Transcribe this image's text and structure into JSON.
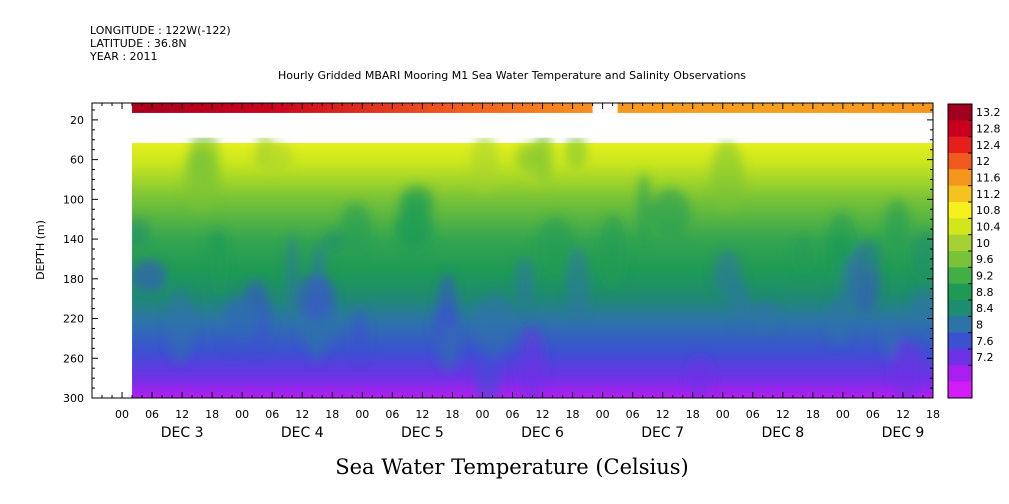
{
  "header": {
    "longitude": "LONGITUDE : 122W(-122)",
    "latitude": "LATITUDE : 36.8N",
    "year": "YEAR : 2011"
  },
  "chart_data": {
    "type": "heatmap",
    "title": "Hourly Gridded MBARI Mooring M1 Sea Water Temperature and Salinity Observations",
    "subtitle": "Sea Water Temperature (Celsius)",
    "xlabel": "",
    "ylabel": "DEPTH (m)",
    "x_hour_ticks": [
      "00",
      "06",
      "12",
      "18",
      "00",
      "06",
      "12",
      "18",
      "00",
      "06",
      "12",
      "18",
      "00",
      "06",
      "12",
      "18",
      "00",
      "06",
      "12",
      "18",
      "00",
      "06",
      "12",
      "18",
      "00",
      "06",
      "12",
      "18"
    ],
    "x_day_labels": [
      "DEC  3",
      "DEC  4",
      "DEC  5",
      "DEC  6",
      "DEC  7",
      "DEC  8",
      "DEC  9"
    ],
    "x_range_hours": [
      -6,
      162
    ],
    "y_ticks": [
      "20",
      "60",
      "100",
      "140",
      "180",
      "220",
      "260",
      "300"
    ],
    "y_tick_values": [
      20,
      60,
      100,
      140,
      180,
      220,
      260,
      300
    ],
    "y_range": [
      300,
      3
    ],
    "data_start_hour": 2,
    "colorbar_labels": [
      "13.2",
      "12.8",
      "12.4",
      "12",
      "11.6",
      "11.2",
      "10.8",
      "10.4",
      "10",
      "9.6",
      "9.2",
      "8.8",
      "8.4",
      "8",
      "7.6",
      "7.2"
    ],
    "colorbar_values": [
      13.2,
      12.8,
      12.4,
      12,
      11.6,
      11.2,
      10.8,
      10.4,
      10,
      9.6,
      9.2,
      8.8,
      8.4,
      8,
      7.6,
      7.2
    ],
    "colorbar_colors": [
      "#a0001e",
      "#c8001e",
      "#e61e1e",
      "#f05a1e",
      "#f5961e",
      "#f5c31e",
      "#f5f01e",
      "#d2e61e",
      "#a5d232",
      "#78c337",
      "#41af46",
      "#1e9a55",
      "#1e8c6e",
      "#2d73aa",
      "#3c50d2",
      "#6e32e6",
      "#aa1ef0",
      "#d21ef5"
    ],
    "gap_hours": [
      [
        -6,
        2
      ]
    ],
    "surface_gap_hours": [
      [
        94,
        99
      ]
    ],
    "surface_depth_m": 10,
    "unsampled_depth_range_m": [
      13,
      38
    ],
    "temperature_profile_depth_m": [
      38,
      60,
      80,
      100,
      120,
      140,
      160,
      180,
      200,
      220,
      240,
      260,
      280,
      300
    ],
    "temperature_profile_c": [
      10.6,
      10.3,
      9.9,
      9.6,
      9.3,
      9.0,
      8.8,
      8.6,
      8.3,
      8.1,
      7.9,
      7.7,
      7.5,
      7.3
    ],
    "surface_temperature_c": [
      {
        "hour": 2,
        "value": 13.2
      },
      {
        "hour": 30,
        "value": 12.6
      },
      {
        "hour": 70,
        "value": 11.9
      },
      {
        "hour": 93,
        "value": 11.8
      },
      {
        "hour": 99,
        "value": 11.6
      },
      {
        "hour": 130,
        "value": 11.5
      },
      {
        "hour": 162,
        "value": 11.7
      }
    ],
    "grid": false,
    "legend": "right colorbar"
  }
}
